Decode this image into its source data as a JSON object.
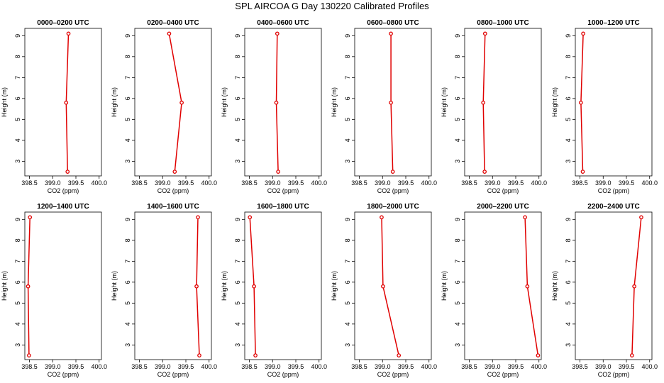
{
  "figure": {
    "title": "SPL AIRCOA G  Day 130220  Calibrated Profiles",
    "colors": {
      "line": "#e00000",
      "marker": "#e00000",
      "axes": "#000000"
    }
  },
  "chart_data": [
    {
      "type": "line",
      "title": "0000–0200 UTC",
      "xlabel": "CO2 (ppm)",
      "ylabel": "Height (m)",
      "xlim": [
        398.4,
        400.05
      ],
      "ylim": [
        2.3,
        9.35
      ],
      "xticks": [
        398.5,
        399.0,
        399.5,
        400.0
      ],
      "xtick_labels": [
        "398.5",
        "399.0",
        "399.5",
        "400.0"
      ],
      "yticks": [
        3,
        4,
        5,
        6,
        7,
        8,
        9
      ],
      "ytick_labels": [
        "3",
        "4",
        "5",
        "6",
        "7",
        "8",
        "9"
      ],
      "series": [
        {
          "x": [
            399.34,
            399.29,
            399.32
          ],
          "y": [
            9.1,
            5.8,
            2.5
          ]
        }
      ]
    },
    {
      "type": "line",
      "title": "0200–0400 UTC",
      "xlabel": "CO2 (ppm)",
      "ylabel": "Height (m)",
      "xlim": [
        398.4,
        400.05
      ],
      "ylim": [
        2.3,
        9.35
      ],
      "xticks": [
        398.5,
        399.0,
        399.5,
        400.0
      ],
      "xtick_labels": [
        "398.5",
        "399.0",
        "399.5",
        "400.0"
      ],
      "yticks": [
        3,
        4,
        5,
        6,
        7,
        8,
        9
      ],
      "ytick_labels": [
        "3",
        "4",
        "5",
        "6",
        "7",
        "8",
        "9"
      ],
      "series": [
        {
          "x": [
            399.14,
            399.41,
            399.26
          ],
          "y": [
            9.1,
            5.8,
            2.5
          ]
        }
      ]
    },
    {
      "type": "line",
      "title": "0400–0600 UTC",
      "xlabel": "CO2 (ppm)",
      "ylabel": "Height (m)",
      "xlim": [
        398.4,
        400.05
      ],
      "ylim": [
        2.3,
        9.35
      ],
      "xticks": [
        398.5,
        399.0,
        399.5,
        400.0
      ],
      "xtick_labels": [
        "398.5",
        "399.0",
        "399.5",
        "400.0"
      ],
      "yticks": [
        3,
        4,
        5,
        6,
        7,
        8,
        9
      ],
      "ytick_labels": [
        "3",
        "4",
        "5",
        "6",
        "7",
        "8",
        "9"
      ],
      "series": [
        {
          "x": [
            399.1,
            399.08,
            399.12
          ],
          "y": [
            9.1,
            5.8,
            2.5
          ]
        }
      ]
    },
    {
      "type": "line",
      "title": "0600–0800 UTC",
      "xlabel": "CO2 (ppm)",
      "ylabel": "Height (m)",
      "xlim": [
        398.4,
        400.05
      ],
      "ylim": [
        2.3,
        9.35
      ],
      "xticks": [
        398.5,
        399.0,
        399.5,
        400.0
      ],
      "xtick_labels": [
        "398.5",
        "399.0",
        "399.5",
        "400.0"
      ],
      "yticks": [
        3,
        4,
        5,
        6,
        7,
        8,
        9
      ],
      "ytick_labels": [
        "3",
        "4",
        "5",
        "6",
        "7",
        "8",
        "9"
      ],
      "series": [
        {
          "x": [
            399.18,
            399.18,
            399.22
          ],
          "y": [
            9.1,
            5.8,
            2.5
          ]
        }
      ]
    },
    {
      "type": "line",
      "title": "0800–1000 UTC",
      "xlabel": "CO2 (ppm)",
      "ylabel": "Height (m)",
      "xlim": [
        398.4,
        400.05
      ],
      "ylim": [
        2.3,
        9.35
      ],
      "xticks": [
        398.5,
        399.0,
        399.5,
        400.0
      ],
      "xtick_labels": [
        "398.5",
        "399.0",
        "399.5",
        "400.0"
      ],
      "yticks": [
        3,
        4,
        5,
        6,
        7,
        8,
        9
      ],
      "ytick_labels": [
        "3",
        "4",
        "5",
        "6",
        "7",
        "8",
        "9"
      ],
      "series": [
        {
          "x": [
            398.84,
            398.8,
            398.83
          ],
          "y": [
            9.1,
            5.8,
            2.5
          ]
        }
      ]
    },
    {
      "type": "line",
      "title": "1000–1200 UTC",
      "xlabel": "CO2 (ppm)",
      "ylabel": "Height (m)",
      "xlim": [
        398.4,
        400.05
      ],
      "ylim": [
        2.3,
        9.35
      ],
      "xticks": [
        398.5,
        399.0,
        399.5,
        400.0
      ],
      "xtick_labels": [
        "398.5",
        "399.0",
        "399.5",
        "400.0"
      ],
      "yticks": [
        3,
        4,
        5,
        6,
        7,
        8,
        9
      ],
      "ytick_labels": [
        "3",
        "4",
        "5",
        "6",
        "7",
        "8",
        "9"
      ],
      "series": [
        {
          "x": [
            398.57,
            398.52,
            398.56
          ],
          "y": [
            9.1,
            5.8,
            2.5
          ]
        }
      ]
    },
    {
      "type": "line",
      "title": "1200–1400 UTC",
      "xlabel": "CO2 (ppm)",
      "ylabel": "Height (m)",
      "xlim": [
        398.4,
        400.05
      ],
      "ylim": [
        2.3,
        9.35
      ],
      "xticks": [
        398.5,
        399.0,
        399.5,
        400.0
      ],
      "xtick_labels": [
        "398.5",
        "399.0",
        "399.5",
        "400.0"
      ],
      "yticks": [
        3,
        4,
        5,
        6,
        7,
        8,
        9
      ],
      "ytick_labels": [
        "3",
        "4",
        "5",
        "6",
        "7",
        "8",
        "9"
      ],
      "series": [
        {
          "x": [
            398.51,
            398.47,
            398.49
          ],
          "y": [
            9.1,
            5.8,
            2.5
          ]
        }
      ]
    },
    {
      "type": "line",
      "title": "1400–1600 UTC",
      "xlabel": "CO2 (ppm)",
      "ylabel": "Height (m)",
      "xlim": [
        398.4,
        400.05
      ],
      "ylim": [
        2.3,
        9.35
      ],
      "xticks": [
        398.5,
        399.0,
        399.5,
        400.0
      ],
      "xtick_labels": [
        "398.5",
        "399.0",
        "399.5",
        "400.0"
      ],
      "yticks": [
        3,
        4,
        5,
        6,
        7,
        8,
        9
      ],
      "ytick_labels": [
        "3",
        "4",
        "5",
        "6",
        "7",
        "8",
        "9"
      ],
      "series": [
        {
          "x": [
            399.76,
            399.73,
            399.79
          ],
          "y": [
            9.1,
            5.8,
            2.5
          ]
        }
      ]
    },
    {
      "type": "line",
      "title": "1600–1800 UTC",
      "xlabel": "CO2 (ppm)",
      "ylabel": "Height (m)",
      "xlim": [
        398.4,
        400.05
      ],
      "ylim": [
        2.3,
        9.35
      ],
      "xticks": [
        398.5,
        399.0,
        399.5,
        400.0
      ],
      "xtick_labels": [
        "398.5",
        "399.0",
        "399.5",
        "400.0"
      ],
      "yticks": [
        3,
        4,
        5,
        6,
        7,
        8,
        9
      ],
      "ytick_labels": [
        "3",
        "4",
        "5",
        "6",
        "7",
        "8",
        "9"
      ],
      "series": [
        {
          "x": [
            398.51,
            398.6,
            398.63
          ],
          "y": [
            9.1,
            5.8,
            2.5
          ]
        }
      ]
    },
    {
      "type": "line",
      "title": "1800–2000 UTC",
      "xlabel": "CO2 (ppm)",
      "ylabel": "Height (m)",
      "xlim": [
        398.4,
        400.05
      ],
      "ylim": [
        2.3,
        9.35
      ],
      "xticks": [
        398.5,
        399.0,
        399.5,
        400.0
      ],
      "xtick_labels": [
        "398.5",
        "399.0",
        "399.5",
        "400.0"
      ],
      "yticks": [
        3,
        4,
        5,
        6,
        7,
        8,
        9
      ],
      "ytick_labels": [
        "3",
        "4",
        "5",
        "6",
        "7",
        "8",
        "9"
      ],
      "series": [
        {
          "x": [
            398.98,
            399.01,
            399.35
          ],
          "y": [
            9.1,
            5.8,
            2.5
          ]
        }
      ]
    },
    {
      "type": "line",
      "title": "2000–2200 UTC",
      "xlabel": "CO2 (ppm)",
      "ylabel": "Height (m)",
      "xlim": [
        398.4,
        400.05
      ],
      "ylim": [
        2.3,
        9.35
      ],
      "xticks": [
        398.5,
        399.0,
        399.5,
        400.0
      ],
      "xtick_labels": [
        "398.5",
        "399.0",
        "399.5",
        "400.0"
      ],
      "yticks": [
        3,
        4,
        5,
        6,
        7,
        8,
        9
      ],
      "ytick_labels": [
        "3",
        "4",
        "5",
        "6",
        "7",
        "8",
        "9"
      ],
      "series": [
        {
          "x": [
            399.7,
            399.75,
            399.98
          ],
          "y": [
            9.1,
            5.8,
            2.5
          ]
        }
      ]
    },
    {
      "type": "line",
      "title": "2200–2400 UTC",
      "xlabel": "CO2 (ppm)",
      "ylabel": "Height (m)",
      "xlim": [
        398.4,
        400.05
      ],
      "ylim": [
        2.3,
        9.35
      ],
      "xticks": [
        398.5,
        399.0,
        399.5,
        400.0
      ],
      "xtick_labels": [
        "398.5",
        "399.0",
        "399.5",
        "400.0"
      ],
      "yticks": [
        3,
        4,
        5,
        6,
        7,
        8,
        9
      ],
      "ytick_labels": [
        "3",
        "4",
        "5",
        "6",
        "7",
        "8",
        "9"
      ],
      "series": [
        {
          "x": [
            399.82,
            399.67,
            399.62
          ],
          "y": [
            9.1,
            5.8,
            2.5
          ]
        }
      ]
    }
  ]
}
